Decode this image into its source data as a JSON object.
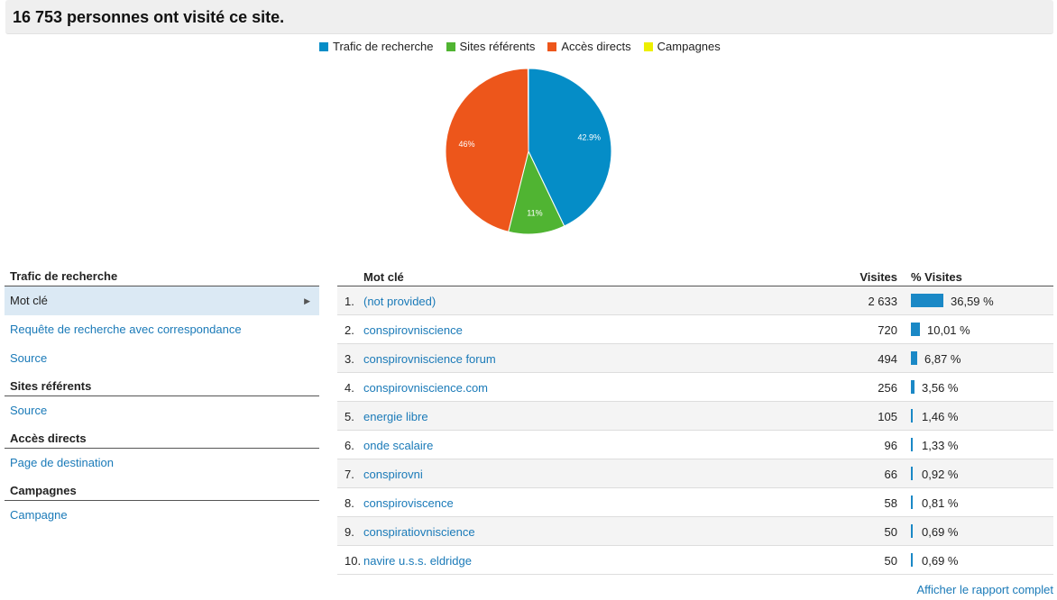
{
  "header": {
    "title": "16 753 personnes ont visité ce site."
  },
  "legend": [
    {
      "label": "Trafic de recherche",
      "color": "#058dc7"
    },
    {
      "label": "Sites référents",
      "color": "#50b432"
    },
    {
      "label": "Accès directs",
      "color": "#ed561b"
    },
    {
      "label": "Campagnes",
      "color": "#edef00"
    }
  ],
  "chart_data": {
    "type": "pie",
    "slices": [
      {
        "name": "Trafic de recherche",
        "value": 42.9,
        "label": "42.9%",
        "color": "#058dc7"
      },
      {
        "name": "Sites référents",
        "value": 11,
        "label": "11%",
        "color": "#50b432"
      },
      {
        "name": "Accès directs",
        "value": 46,
        "label": "46%",
        "color": "#ed561b"
      },
      {
        "name": "Campagnes",
        "value": 0.1,
        "label": "",
        "color": "#edef00"
      }
    ]
  },
  "sidebar": {
    "groups": [
      {
        "title": "Trafic de recherche",
        "items": [
          {
            "label": "Mot clé",
            "selected": true
          },
          {
            "label": "Requête de recherche avec correspondance",
            "selected": false
          },
          {
            "label": "Source",
            "selected": false
          }
        ]
      },
      {
        "title": "Sites référents",
        "items": [
          {
            "label": "Source",
            "selected": false
          }
        ]
      },
      {
        "title": "Accès directs",
        "items": [
          {
            "label": "Page de destination",
            "selected": false
          }
        ]
      },
      {
        "title": "Campagnes",
        "items": [
          {
            "label": "Campagne",
            "selected": false
          }
        ]
      }
    ]
  },
  "table": {
    "headers": {
      "keyword": "Mot clé",
      "visits": "Visites",
      "pct": "% Visites"
    },
    "rows": [
      {
        "index": "1.",
        "keyword": "(not provided)",
        "visits": "2 633",
        "pct": "36,59 %",
        "share": 36.59
      },
      {
        "index": "2.",
        "keyword": "conspirovniscience",
        "visits": "720",
        "pct": "10,01 %",
        "share": 10.01
      },
      {
        "index": "3.",
        "keyword": "conspirovniscience forum",
        "visits": "494",
        "pct": "6,87 %",
        "share": 6.87
      },
      {
        "index": "4.",
        "keyword": "conspirovniscience.com",
        "visits": "256",
        "pct": "3,56 %",
        "share": 3.56
      },
      {
        "index": "5.",
        "keyword": "energie libre",
        "visits": "105",
        "pct": "1,46 %",
        "share": 1.46
      },
      {
        "index": "6.",
        "keyword": "onde scalaire",
        "visits": "96",
        "pct": "1,33 %",
        "share": 1.33
      },
      {
        "index": "7.",
        "keyword": "conspirovni",
        "visits": "66",
        "pct": "0,92 %",
        "share": 0.92
      },
      {
        "index": "8.",
        "keyword": "conspiroviscence",
        "visits": "58",
        "pct": "0,81 %",
        "share": 0.81
      },
      {
        "index": "9.",
        "keyword": "conspiratiovniscience",
        "visits": "50",
        "pct": "0,69 %",
        "share": 0.69
      },
      {
        "index": "10.",
        "keyword": "navire u.s.s. eldridge",
        "visits": "50",
        "pct": "0,69 %",
        "share": 0.69
      }
    ]
  },
  "footer": {
    "report_link": "Afficher le rapport complet"
  }
}
